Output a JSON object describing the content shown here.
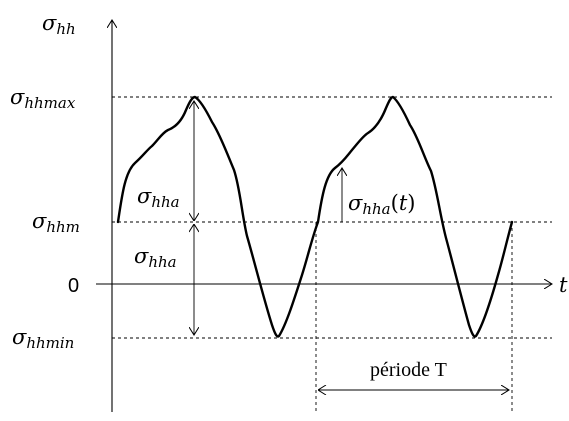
{
  "labels": {
    "y_axis": "σhh",
    "x_axis": "t",
    "max": "σhhmax",
    "mean": "σhhm",
    "zero": "0",
    "min": "σhhmin",
    "amp_upper": "σhha",
    "amp_lower": "σhha",
    "amp_inst": "σhha(t)",
    "period": "période T"
  }
}
